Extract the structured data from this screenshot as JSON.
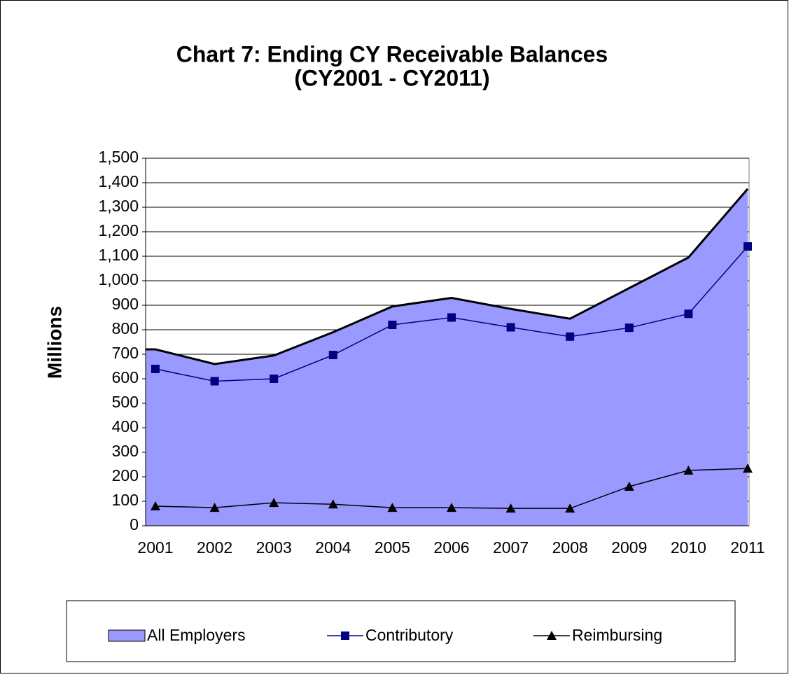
{
  "chart_data": {
    "type": "area-line",
    "title": "Chart 7: Ending CY Receivable Balances",
    "subtitle": "(CY2001 - CY2011)",
    "y_label": "Millions",
    "categories": [
      "2001",
      "2002",
      "2003",
      "2004",
      "2005",
      "2006",
      "2007",
      "2008",
      "2009",
      "2010",
      "2011"
    ],
    "series": [
      {
        "name": "All Employers",
        "kind": "area",
        "color": "#9999ff",
        "values": [
          720,
          660,
          695,
          790,
          895,
          930,
          885,
          845,
          970,
          1095,
          1375
        ]
      },
      {
        "name": "Contributory",
        "kind": "line",
        "marker": "square",
        "color": "#000080",
        "values": [
          640,
          590,
          600,
          697,
          820,
          850,
          810,
          772,
          808,
          865,
          1140
        ]
      },
      {
        "name": "Reimbursing",
        "kind": "line",
        "marker": "triangle",
        "color": "#000000",
        "values": [
          80,
          74,
          94,
          88,
          74,
          74,
          71,
          71,
          160,
          226,
          234
        ]
      }
    ],
    "ylim": [
      0,
      1500
    ],
    "yticks": [
      0,
      100,
      200,
      300,
      400,
      500,
      600,
      700,
      800,
      900,
      {
        "value": 1000,
        "label": "1,000"
      },
      {
        "value": 1100,
        "label": "1,100"
      },
      {
        "value": 1200,
        "label": "1,200"
      },
      {
        "value": 1300,
        "label": "1,300"
      },
      {
        "value": 1400,
        "label": "1,400"
      },
      {
        "value": 1500,
        "label": "1,500"
      }
    ],
    "grid": true,
    "legend": "bottom"
  }
}
